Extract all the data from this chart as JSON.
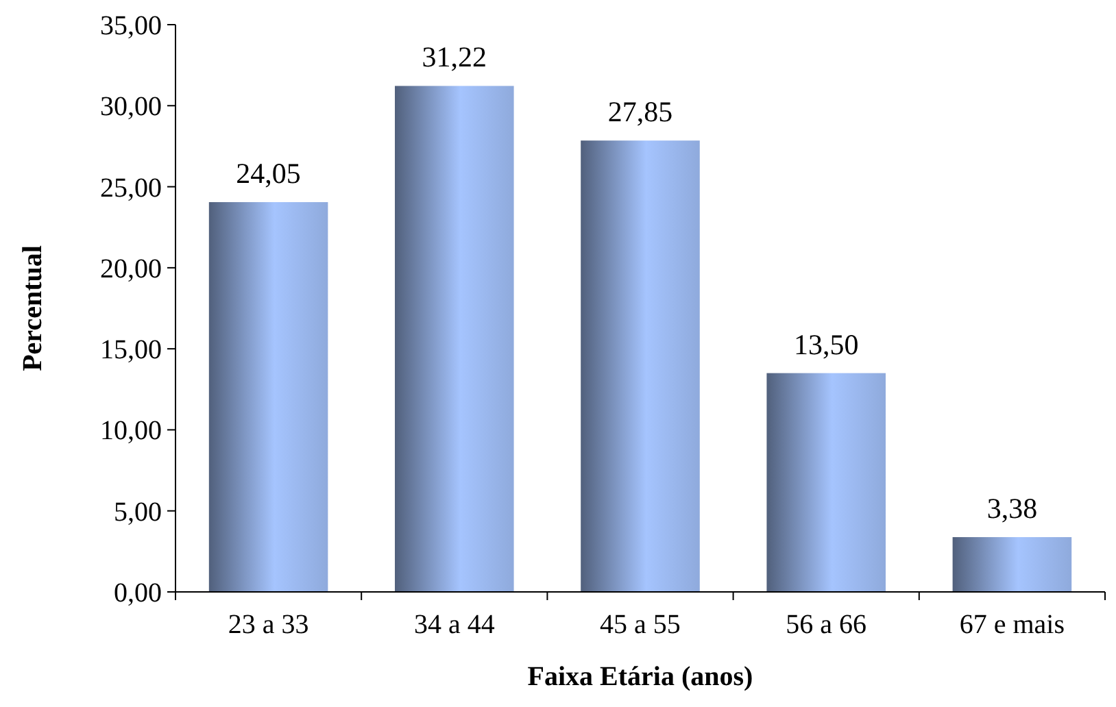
{
  "chart_data": {
    "type": "bar",
    "xlabel": "Faixa Etária (anos)",
    "ylabel": "Percentual",
    "categories": [
      "23 a 33",
      "34 a 44",
      "45 a 55",
      "56 a 66",
      "67 e mais"
    ],
    "values": [
      24.05,
      31.22,
      27.85,
      13.5,
      3.38
    ],
    "value_labels": [
      "24,05",
      "31,22",
      "27,85",
      "13,50",
      "3,38"
    ],
    "color": "#8faadc",
    "ylim": [
      0,
      35
    ],
    "yticks": [
      {
        "value": 0,
        "label": "0,00"
      },
      {
        "value": 5,
        "label": "5,00"
      },
      {
        "value": 10,
        "label": "10,00"
      },
      {
        "value": 15,
        "label": "15,00"
      },
      {
        "value": 20,
        "label": "20,00"
      },
      {
        "value": 25,
        "label": "25,00"
      },
      {
        "value": 30,
        "label": "30,00"
      },
      {
        "value": 35,
        "label": "35,00"
      }
    ],
    "grid": false
  }
}
